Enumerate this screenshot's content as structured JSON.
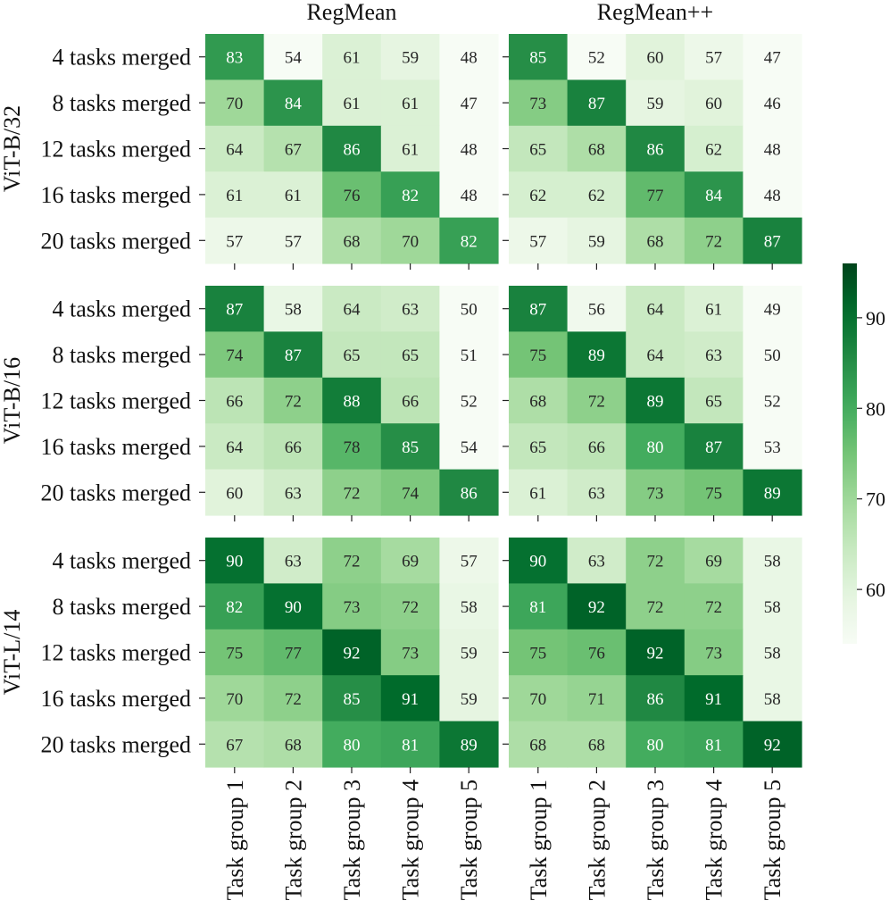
{
  "chart_data": {
    "type": "heatmap",
    "column_titles": [
      "RegMean",
      "RegMean++"
    ],
    "row_titles": [
      "ViT-B/32",
      "ViT-B/16",
      "ViT-L/14"
    ],
    "ylabels": [
      "4 tasks merged",
      "8 tasks merged",
      "12 tasks merged",
      "16 tasks merged",
      "20 tasks merged"
    ],
    "xlabels": [
      "Task group 1",
      "Task group 2",
      "Task group 3",
      "Task group 4",
      "Task group 5"
    ],
    "colorbar": {
      "vmin": 54,
      "vmax": 96,
      "ticks": [
        60,
        70,
        80,
        90
      ],
      "tick_labels": [
        "60",
        "70",
        "80",
        "90"
      ],
      "colormap": "Greens"
    },
    "panels": [
      {
        "model": "ViT-B/32",
        "method": "RegMean",
        "values": [
          [
            83,
            54,
            61,
            59,
            48
          ],
          [
            70,
            84,
            61,
            61,
            47
          ],
          [
            64,
            67,
            86,
            61,
            48
          ],
          [
            61,
            61,
            76,
            82,
            48
          ],
          [
            57,
            57,
            68,
            70,
            82
          ]
        ]
      },
      {
        "model": "ViT-B/32",
        "method": "RegMean++",
        "values": [
          [
            85,
            52,
            60,
            57,
            47
          ],
          [
            73,
            87,
            59,
            60,
            46
          ],
          [
            65,
            68,
            86,
            62,
            48
          ],
          [
            62,
            62,
            77,
            84,
            48
          ],
          [
            57,
            59,
            68,
            72,
            87
          ]
        ]
      },
      {
        "model": "ViT-B/16",
        "method": "RegMean",
        "values": [
          [
            87,
            58,
            64,
            63,
            50
          ],
          [
            74,
            87,
            65,
            65,
            51
          ],
          [
            66,
            72,
            88,
            66,
            52
          ],
          [
            64,
            66,
            78,
            85,
            54
          ],
          [
            60,
            63,
            72,
            74,
            86
          ]
        ]
      },
      {
        "model": "ViT-B/16",
        "method": "RegMean++",
        "values": [
          [
            87,
            56,
            64,
            61,
            49
          ],
          [
            75,
            89,
            64,
            63,
            50
          ],
          [
            68,
            72,
            89,
            65,
            52
          ],
          [
            65,
            66,
            80,
            87,
            53
          ],
          [
            61,
            63,
            73,
            75,
            89
          ]
        ]
      },
      {
        "model": "ViT-L/14",
        "method": "RegMean",
        "values": [
          [
            90,
            63,
            72,
            69,
            57
          ],
          [
            82,
            90,
            73,
            72,
            58
          ],
          [
            75,
            77,
            92,
            73,
            59
          ],
          [
            70,
            72,
            85,
            91,
            59
          ],
          [
            67,
            68,
            80,
            81,
            89
          ]
        ]
      },
      {
        "model": "ViT-L/14",
        "method": "RegMean++",
        "values": [
          [
            90,
            63,
            72,
            69,
            58
          ],
          [
            81,
            92,
            72,
            72,
            58
          ],
          [
            75,
            76,
            92,
            73,
            58
          ],
          [
            70,
            71,
            86,
            91,
            58
          ],
          [
            68,
            68,
            80,
            81,
            92
          ]
        ]
      }
    ]
  }
}
